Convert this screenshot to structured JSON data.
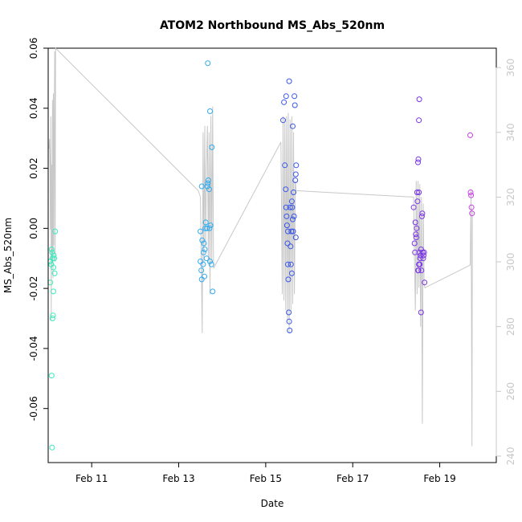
{
  "chart_data": {
    "type": "scatter",
    "title": "ATOM2 Northbound MS_Abs_520nm",
    "xlabel": "Date",
    "ylabel": "MS_Abs_520nm",
    "x_ticks": [
      {
        "day": 11,
        "label": "Feb 11"
      },
      {
        "day": 13,
        "label": "Feb 13"
      },
      {
        "day": 15,
        "label": "Feb 15"
      },
      {
        "day": 17,
        "label": "Feb 17"
      },
      {
        "day": 19,
        "label": "Feb 19"
      }
    ],
    "xlim": [
      10.0,
      20.3
    ],
    "ylim": [
      -0.078,
      0.06
    ],
    "y_ticks": [
      -0.06,
      -0.04,
      -0.02,
      0.0,
      0.02,
      0.04,
      0.06
    ],
    "y_tick_labels": [
      "-0.06",
      "-0.04",
      "-0.02",
      "0.00",
      "0.02",
      "0.04",
      "0.06"
    ],
    "y2lim": [
      238,
      366
    ],
    "y2_ticks": [
      240,
      260,
      280,
      300,
      320,
      340,
      360
    ],
    "y2_tick_labels": [
      "240",
      "260",
      "280",
      "300",
      "320",
      "340",
      "360"
    ],
    "grid": false,
    "colors": {
      "axis": "#000000",
      "secondary_axis": "#c8c8c8",
      "secondary_line": "#c8c8c8",
      "point_gradient": [
        "#3ef2b0",
        "#34c8f0",
        "#2a5ee8",
        "#7a34e8",
        "#e040e8"
      ]
    },
    "series": [
      {
        "values": [
          [
            10.05,
            -0.018,
            0.05
          ],
          [
            10.05,
            -0.011,
            0.05
          ],
          [
            10.07,
            -0.012,
            0.05
          ],
          [
            10.08,
            -0.007,
            0.05
          ],
          [
            10.09,
            -0.008,
            0.05
          ],
          [
            10.1,
            -0.01,
            0.05
          ],
          [
            10.12,
            -0.013,
            0.05
          ],
          [
            10.13,
            -0.009,
            0.05
          ],
          [
            10.14,
            -0.01,
            0.05
          ],
          [
            10.15,
            -0.015,
            0.05
          ],
          [
            10.08,
            -0.049,
            0.05
          ],
          [
            10.09,
            -0.073,
            0.05
          ],
          [
            10.11,
            -0.029,
            0.05
          ],
          [
            10.1,
            -0.03,
            0.05
          ],
          [
            10.12,
            -0.021,
            0.05
          ],
          [
            10.16,
            -0.001,
            0.05
          ],
          [
            13.5,
            -0.001,
            0.32
          ],
          [
            13.5,
            -0.011,
            0.32
          ],
          [
            13.52,
            -0.014,
            0.32
          ],
          [
            13.53,
            -0.017,
            0.32
          ],
          [
            13.54,
            -0.004,
            0.32
          ],
          [
            13.56,
            -0.012,
            0.32
          ],
          [
            13.57,
            -0.008,
            0.32
          ],
          [
            13.58,
            -0.005,
            0.32
          ],
          [
            13.59,
            -0.016,
            0.32
          ],
          [
            13.6,
            -0.007,
            0.32
          ],
          [
            13.61,
            0.0,
            0.32
          ],
          [
            13.62,
            0.002,
            0.32
          ],
          [
            13.64,
            -0.01,
            0.32
          ],
          [
            13.65,
            0.0,
            0.32
          ],
          [
            13.66,
            0.014,
            0.32
          ],
          [
            13.67,
            0.015,
            0.32
          ],
          [
            13.68,
            0.016,
            0.32
          ],
          [
            13.7,
            0.013,
            0.32
          ],
          [
            13.71,
            0.0,
            0.32
          ],
          [
            13.72,
            -0.011,
            0.32
          ],
          [
            13.73,
            0.001,
            0.32
          ],
          [
            13.75,
            -0.012,
            0.32
          ],
          [
            13.76,
            0.027,
            0.32
          ],
          [
            13.78,
            -0.021,
            0.32
          ],
          [
            13.53,
            0.014,
            0.32
          ],
          [
            13.67,
            0.055,
            0.32
          ],
          [
            13.72,
            0.039,
            0.32
          ],
          [
            15.4,
            0.036,
            0.55
          ],
          [
            15.42,
            0.042,
            0.55
          ],
          [
            15.44,
            0.021,
            0.55
          ],
          [
            15.46,
            0.013,
            0.55
          ],
          [
            15.47,
            0.007,
            0.55
          ],
          [
            15.48,
            0.004,
            0.55
          ],
          [
            15.49,
            0.001,
            0.55
          ],
          [
            15.5,
            -0.005,
            0.55
          ],
          [
            15.51,
            -0.012,
            0.55
          ],
          [
            15.52,
            -0.017,
            0.55
          ],
          [
            15.53,
            -0.028,
            0.55
          ],
          [
            15.54,
            -0.031,
            0.55
          ],
          [
            15.55,
            -0.034,
            0.55
          ],
          [
            15.56,
            0.007,
            0.55
          ],
          [
            15.57,
            -0.006,
            0.55
          ],
          [
            15.58,
            -0.012,
            0.55
          ],
          [
            15.59,
            -0.001,
            0.55
          ],
          [
            15.6,
            0.009,
            0.55
          ],
          [
            15.61,
            0.007,
            0.55
          ],
          [
            15.62,
            0.003,
            0.55
          ],
          [
            15.63,
            -0.001,
            0.55
          ],
          [
            15.64,
            0.012,
            0.55
          ],
          [
            15.65,
            0.004,
            0.55
          ],
          [
            15.66,
            0.044,
            0.55
          ],
          [
            15.67,
            0.041,
            0.55
          ],
          [
            15.68,
            0.016,
            0.55
          ],
          [
            15.69,
            0.018,
            0.55
          ],
          [
            15.7,
            0.021,
            0.55
          ],
          [
            15.62,
            0.034,
            0.55
          ],
          [
            15.47,
            0.044,
            0.55
          ],
          [
            15.54,
            0.049,
            0.55
          ],
          [
            15.6,
            -0.015,
            0.55
          ],
          [
            15.69,
            -0.003,
            0.55
          ],
          [
            15.51,
            -0.001,
            0.55
          ],
          [
            18.4,
            0.007,
            0.75
          ],
          [
            18.42,
            -0.005,
            0.75
          ],
          [
            18.43,
            -0.008,
            0.75
          ],
          [
            18.44,
            0.002,
            0.75
          ],
          [
            18.45,
            -0.002,
            0.75
          ],
          [
            18.46,
            -0.003,
            0.75
          ],
          [
            18.47,
            0.0,
            0.75
          ],
          [
            18.48,
            0.012,
            0.75
          ],
          [
            18.49,
            0.009,
            0.75
          ],
          [
            18.5,
            0.022,
            0.75
          ],
          [
            18.51,
            0.023,
            0.75
          ],
          [
            18.52,
            0.012,
            0.75
          ],
          [
            18.53,
            -0.008,
            0.75
          ],
          [
            18.54,
            -0.012,
            0.75
          ],
          [
            18.55,
            -0.01,
            0.75
          ],
          [
            18.56,
            -0.009,
            0.75
          ],
          [
            18.57,
            -0.007,
            0.75
          ],
          [
            18.58,
            -0.014,
            0.75
          ],
          [
            18.59,
            0.004,
            0.75
          ],
          [
            18.6,
            0.005,
            0.75
          ],
          [
            18.61,
            -0.008,
            0.75
          ],
          [
            18.62,
            -0.01,
            0.75
          ],
          [
            18.63,
            -0.009,
            0.75
          ],
          [
            18.64,
            -0.008,
            0.75
          ],
          [
            18.65,
            -0.018,
            0.75
          ],
          [
            18.52,
            0.036,
            0.75
          ],
          [
            18.53,
            0.043,
            0.75
          ],
          [
            18.57,
            -0.028,
            0.75
          ],
          [
            18.5,
            -0.014,
            0.75
          ],
          [
            18.51,
            -0.014,
            0.75
          ],
          [
            18.52,
            -0.012,
            0.75
          ],
          [
            19.7,
            0.031,
            0.95
          ],
          [
            19.71,
            0.012,
            0.95
          ],
          [
            19.72,
            0.011,
            0.95
          ],
          [
            19.73,
            0.007,
            0.95
          ],
          [
            19.74,
            0.005,
            0.95
          ]
        ]
      }
    ],
    "secondary_series": {
      "values": [
        [
          10.02,
          335
        ],
        [
          10.03,
          338
        ],
        [
          10.04,
          330
        ],
        [
          10.05,
          310
        ],
        [
          10.06,
          345
        ],
        [
          10.07,
          282
        ],
        [
          10.08,
          330
        ],
        [
          10.09,
          300
        ],
        [
          10.1,
          350
        ],
        [
          10.11,
          295
        ],
        [
          10.12,
          352
        ],
        [
          10.13,
          305
        ],
        [
          10.14,
          340
        ],
        [
          10.15,
          365
        ],
        [
          10.16,
          300
        ],
        [
          10.17,
          366
        ],
        [
          13.45,
          322
        ],
        [
          13.5,
          320
        ],
        [
          13.52,
          300
        ],
        [
          13.54,
          278
        ],
        [
          13.56,
          340
        ],
        [
          13.58,
          300
        ],
        [
          13.6,
          342
        ],
        [
          13.62,
          305
        ],
        [
          13.64,
          330
        ],
        [
          13.66,
          342
        ],
        [
          13.68,
          300
        ],
        [
          13.7,
          340
        ],
        [
          13.72,
          290
        ],
        [
          13.74,
          345
        ],
        [
          13.76,
          300
        ],
        [
          13.78,
          348
        ],
        [
          13.8,
          298
        ],
        [
          15.35,
          337
        ],
        [
          15.38,
          290
        ],
        [
          15.4,
          345
        ],
        [
          15.42,
          288
        ],
        [
          15.44,
          344
        ],
        [
          15.46,
          285
        ],
        [
          15.48,
          345
        ],
        [
          15.5,
          282
        ],
        [
          15.52,
          346
        ],
        [
          15.54,
          278
        ],
        [
          15.56,
          344
        ],
        [
          15.58,
          285
        ],
        [
          15.6,
          345
        ],
        [
          15.62,
          287
        ],
        [
          15.64,
          340
        ],
        [
          15.66,
          290
        ],
        [
          15.68,
          325
        ],
        [
          15.7,
          322
        ],
        [
          18.4,
          320
        ],
        [
          18.42,
          300
        ],
        [
          18.44,
          285
        ],
        [
          18.46,
          325
        ],
        [
          18.48,
          290
        ],
        [
          18.5,
          325
        ],
        [
          18.52,
          292
        ],
        [
          18.54,
          324
        ],
        [
          18.56,
          280
        ],
        [
          18.58,
          320
        ],
        [
          18.6,
          250
        ],
        [
          18.62,
          318
        ],
        [
          18.64,
          293
        ],
        [
          18.66,
          292
        ],
        [
          19.7,
          299
        ],
        [
          19.72,
          322
        ],
        [
          19.74,
          243
        ],
        [
          19.75,
          316
        ]
      ]
    }
  }
}
